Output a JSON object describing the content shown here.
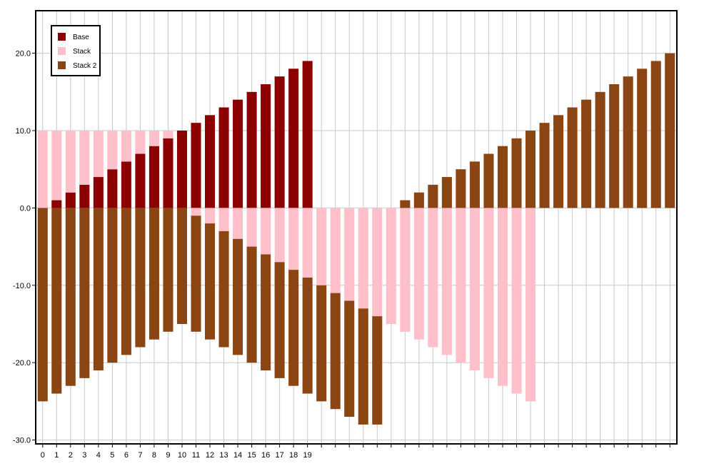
{
  "chart_data": {
    "type": "bar",
    "stacked": true,
    "x": [
      0,
      1,
      2,
      3,
      4,
      5,
      6,
      7,
      8,
      9,
      10,
      11,
      12,
      13,
      14,
      15,
      16,
      17,
      18,
      19,
      20,
      21,
      22,
      23,
      24,
      25,
      26,
      27,
      28,
      29,
      30,
      31,
      32,
      33,
      34,
      35,
      36,
      37,
      38,
      39,
      40,
      41,
      42,
      43,
      44,
      45
    ],
    "x_tick_labels": [
      "0",
      "1",
      "2",
      "3",
      "4",
      "5",
      "6",
      "7",
      "8",
      "9",
      "10",
      "11",
      "12",
      "13",
      "14",
      "15",
      "16",
      "17",
      "18",
      "19"
    ],
    "series": [
      {
        "name": "Base",
        "color": "#8b0000",
        "values": [
          0,
          1,
          2,
          3,
          4,
          5,
          6,
          7,
          8,
          9,
          10,
          11,
          12,
          13,
          14,
          15,
          16,
          17,
          18,
          19,
          null,
          null,
          null,
          null,
          null,
          null,
          null,
          null,
          null,
          null,
          null,
          null,
          null,
          null,
          null,
          null,
          null,
          null,
          null,
          null,
          null,
          null,
          null,
          null,
          null,
          null
        ]
      },
      {
        "name": "Stack",
        "color": "#ffc0cb",
        "values": [
          10,
          9,
          8,
          7,
          6,
          5,
          4,
          3,
          2,
          1,
          0,
          -1,
          -2,
          -3,
          -4,
          -5,
          -6,
          -7,
          -8,
          -9,
          -10,
          -11,
          -12,
          -13,
          -14,
          -15,
          -16,
          -17,
          -18,
          -19,
          -20,
          -21,
          -22,
          -23,
          -24,
          -25,
          null,
          null,
          null,
          null,
          null,
          null,
          null,
          null,
          null,
          null
        ]
      },
      {
        "name": "Stack 2",
        "color": "#8b4513",
        "values": [
          -25,
          -24,
          -23,
          -22,
          -21,
          -20,
          -19,
          -18,
          -17,
          -16,
          -15,
          -15,
          -15,
          -15,
          -15,
          -15,
          -15,
          -15,
          -15,
          -15,
          -15,
          -15,
          -15,
          -15,
          -14,
          null,
          1,
          2,
          3,
          4,
          5,
          6,
          7,
          8,
          9,
          10,
          11,
          12,
          13,
          14,
          15,
          16,
          17,
          18,
          19,
          20
        ]
      }
    ],
    "y_tick_labels": [
      "20.0",
      "10.0",
      "0.0",
      "-10.0",
      "-20.0",
      "-30.0"
    ],
    "y_ticks": [
      20,
      10,
      0,
      -10,
      -20,
      -30
    ],
    "ylim": [
      -30.5,
      25.5
    ],
    "xlim": [
      -0.5,
      45.5
    ],
    "grid": true,
    "legend_position": "top-left",
    "title": "",
    "xlabel": "",
    "ylabel": ""
  }
}
